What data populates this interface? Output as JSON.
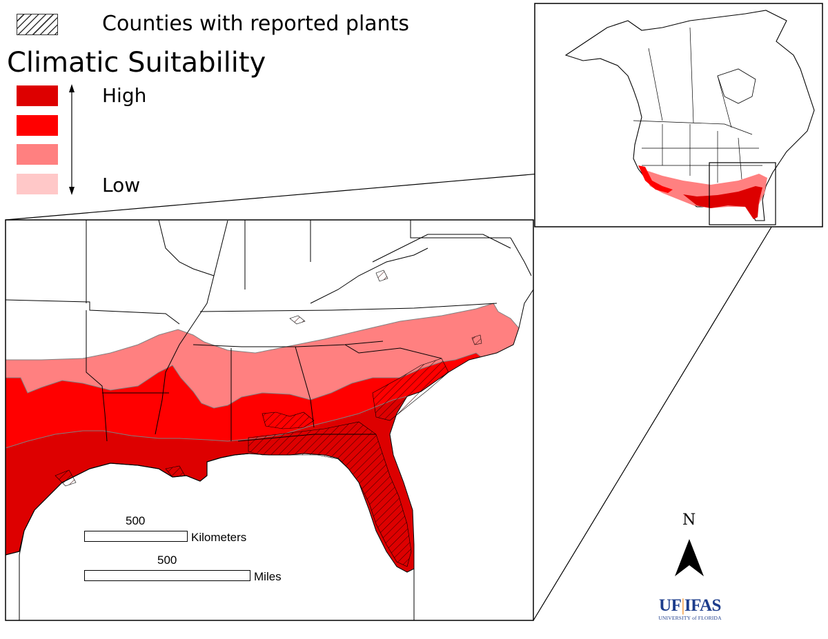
{
  "legend": {
    "hatch_label": "Counties with reported plants",
    "title": "Climatic Suitability",
    "high_label": "High",
    "low_label": "Low",
    "classes": [
      {
        "level": "high",
        "color": "#dd0000"
      },
      {
        "level": "medium-high",
        "color": "#ff0000"
      },
      {
        "level": "medium-low",
        "color": "#ff8080"
      },
      {
        "level": "low",
        "color": "#ffc8c8"
      }
    ]
  },
  "scale": {
    "km_value": "500",
    "km_unit": "Kilometers",
    "mi_value": "500",
    "mi_unit": "Miles"
  },
  "north_arrow": {
    "label": "N"
  },
  "logo": {
    "uf": "UF",
    "separator": "|",
    "ifas": "IFAS",
    "subtitle": "UNIVERSITY of FLORIDA"
  },
  "colors": {
    "suitability_high": "#dd0000",
    "suitability_medium_high": "#ff0000",
    "suitability_medium_low": "#ff8080",
    "suitability_low": "#ffc8c8",
    "logo_blue": "#1d3d8c",
    "logo_orange": "#f08a1f"
  }
}
